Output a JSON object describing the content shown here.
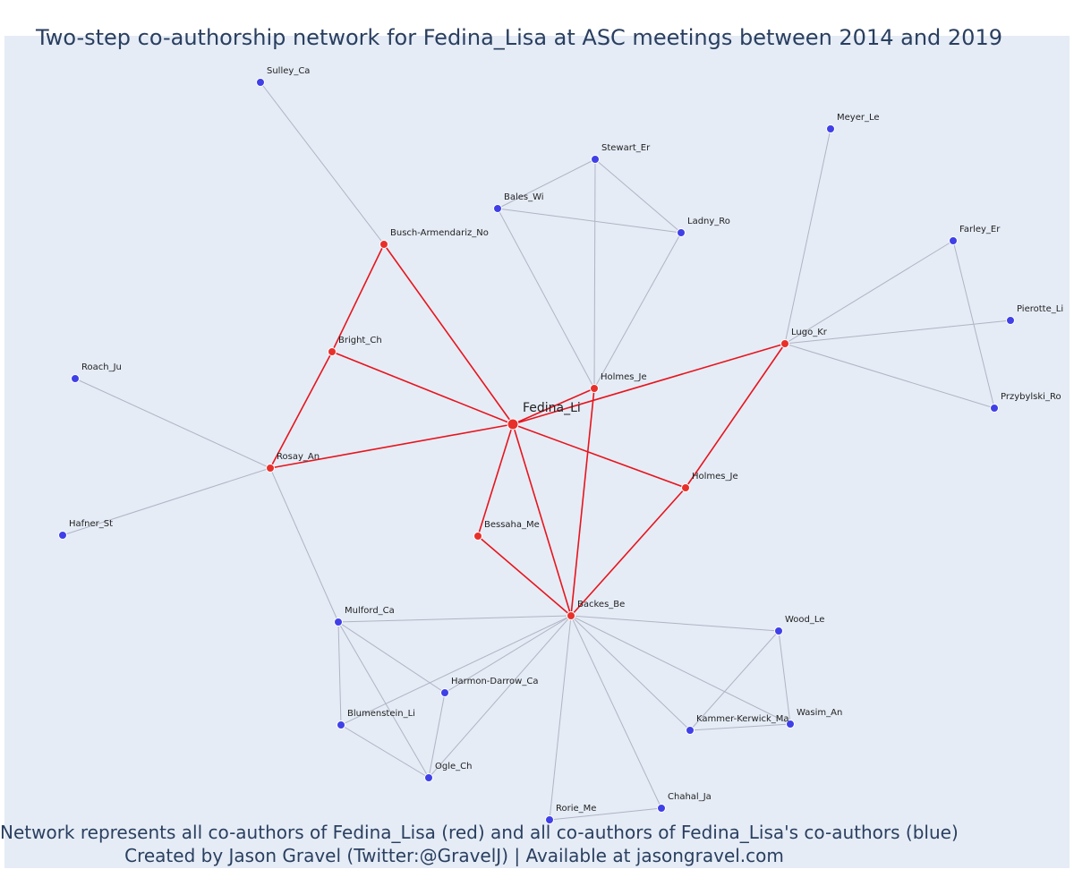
{
  "title": "Two-step co-authorship network for Fedina_Lisa at ASC meetings between 2014 and 2019",
  "caption": {
    "line1": "Network represents all co-authors of Fedina_Lisa (red) and all co-authors of Fedina_Lisa's co-authors (blue)",
    "line2": "Created by Jason Gravel (Twitter:@GravelJ) | Available at jasongravel.com"
  },
  "colors": {
    "background": "#e5ecf6",
    "coauthor": "#e8302a",
    "second_step": "#4040e8",
    "coauthor_edge": "#e8141c",
    "second_step_edge": "#b0b4c4",
    "text": "#2a3f5f"
  },
  "nodes": [
    {
      "id": "fedina",
      "label": "Fedina_Li",
      "group": "focal"
    },
    {
      "id": "busch",
      "label": "Busch-Armendariz_No",
      "group": "coauthor"
    },
    {
      "id": "bright",
      "label": "Bright_Ch",
      "group": "coauthor"
    },
    {
      "id": "rosay",
      "label": "Rosay_An",
      "group": "coauthor"
    },
    {
      "id": "holmes1",
      "label": "Holmes_Je",
      "group": "coauthor"
    },
    {
      "id": "lugo",
      "label": "Lugo_Kr",
      "group": "coauthor"
    },
    {
      "id": "holmes2",
      "label": "Holmes_Je",
      "group": "coauthor"
    },
    {
      "id": "bessaha",
      "label": "Bessaha_Me",
      "group": "coauthor"
    },
    {
      "id": "backes",
      "label": "Backes_Be",
      "group": "coauthor"
    },
    {
      "id": "sulley",
      "label": "Sulley_Ca",
      "group": "second"
    },
    {
      "id": "stewart",
      "label": "Stewart_Er",
      "group": "second"
    },
    {
      "id": "bales",
      "label": "Bales_Wi",
      "group": "second"
    },
    {
      "id": "ladny",
      "label": "Ladny_Ro",
      "group": "second"
    },
    {
      "id": "meyer",
      "label": "Meyer_Le",
      "group": "second"
    },
    {
      "id": "farley",
      "label": "Farley_Er",
      "group": "second"
    },
    {
      "id": "pierotte",
      "label": "Pierotte_Li",
      "group": "second"
    },
    {
      "id": "przybylski",
      "label": "Przybylski_Ro",
      "group": "second"
    },
    {
      "id": "roach",
      "label": "Roach_Ju",
      "group": "second"
    },
    {
      "id": "hafner",
      "label": "Hafner_St",
      "group": "second"
    },
    {
      "id": "mulford",
      "label": "Mulford_Ca",
      "group": "second"
    },
    {
      "id": "harmon",
      "label": "Harmon-Darrow_Ca",
      "group": "second"
    },
    {
      "id": "blumenstein",
      "label": "Blumenstein_Li",
      "group": "second"
    },
    {
      "id": "ogle",
      "label": "Ogle_Ch",
      "group": "second"
    },
    {
      "id": "wood",
      "label": "Wood_Le",
      "group": "second"
    },
    {
      "id": "kammer",
      "label": "Kammer-Kerwick_Ma",
      "group": "second"
    },
    {
      "id": "wasim",
      "label": "Wasim_An",
      "group": "second"
    },
    {
      "id": "rorie",
      "label": "Rorie_Me",
      "group": "second"
    },
    {
      "id": "chahal",
      "label": "Chahal_Ja",
      "group": "second"
    }
  ],
  "edges": [
    [
      "fedina",
      "busch"
    ],
    [
      "fedina",
      "bright"
    ],
    [
      "fedina",
      "rosay"
    ],
    [
      "fedina",
      "holmes1"
    ],
    [
      "fedina",
      "lugo"
    ],
    [
      "fedina",
      "holmes2"
    ],
    [
      "fedina",
      "bessaha"
    ],
    [
      "fedina",
      "backes"
    ],
    [
      "busch",
      "bright"
    ],
    [
      "bright",
      "rosay"
    ],
    [
      "holmes1",
      "backes"
    ],
    [
      "bessaha",
      "backes"
    ],
    [
      "holmes2",
      "backes"
    ],
    [
      "lugo",
      "holmes2"
    ],
    [
      "sulley",
      "busch"
    ],
    [
      "stewart",
      "bales"
    ],
    [
      "stewart",
      "ladny"
    ],
    [
      "bales",
      "ladny"
    ],
    [
      "stewart",
      "holmes1"
    ],
    [
      "bales",
      "holmes1"
    ],
    [
      "ladny",
      "holmes1"
    ],
    [
      "meyer",
      "lugo"
    ],
    [
      "farley",
      "lugo"
    ],
    [
      "pierotte",
      "lugo"
    ],
    [
      "przybylski",
      "lugo"
    ],
    [
      "farley",
      "przybylski"
    ],
    [
      "roach",
      "rosay"
    ],
    [
      "hafner",
      "rosay"
    ],
    [
      "rosay",
      "mulford"
    ],
    [
      "mulford",
      "backes"
    ],
    [
      "mulford",
      "harmon"
    ],
    [
      "mulford",
      "blumenstein"
    ],
    [
      "mulford",
      "ogle"
    ],
    [
      "harmon",
      "ogle"
    ],
    [
      "blumenstein",
      "ogle"
    ],
    [
      "blumenstein",
      "backes"
    ],
    [
      "ogle",
      "backes"
    ],
    [
      "harmon",
      "backes"
    ],
    [
      "backes",
      "wood"
    ],
    [
      "backes",
      "kammer"
    ],
    [
      "backes",
      "wasim"
    ],
    [
      "backes",
      "rorie"
    ],
    [
      "backes",
      "chahal"
    ],
    [
      "wood",
      "kammer"
    ],
    [
      "wood",
      "wasim"
    ],
    [
      "kammer",
      "wasim"
    ],
    [
      "rorie",
      "chahal"
    ]
  ]
}
